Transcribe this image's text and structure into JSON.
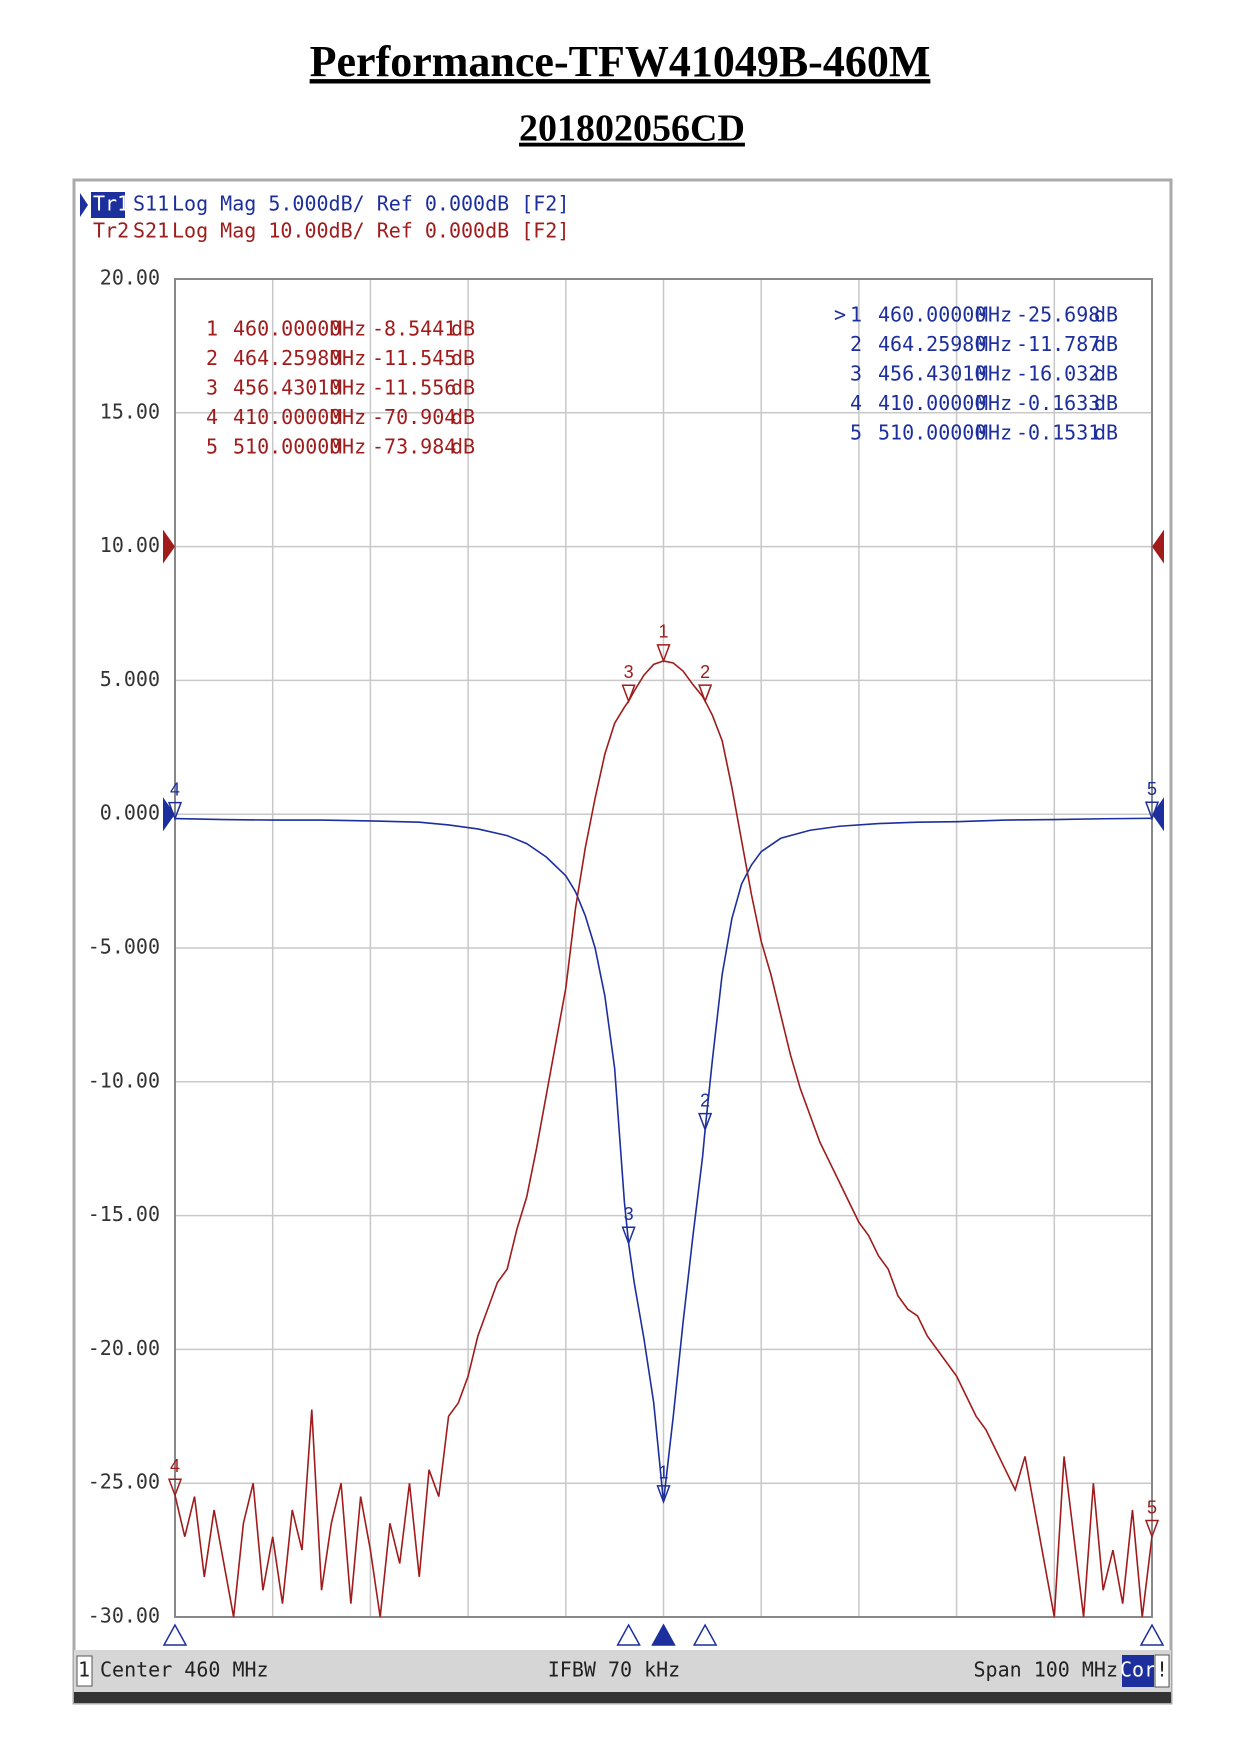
{
  "chart_data": {
    "type": "line",
    "title": "Performance-TFW41049B-460M",
    "subtitle": "201802056CD",
    "xlim": [
      410,
      510
    ],
    "xticks": [
      410,
      420,
      430,
      440,
      450,
      460,
      470,
      480,
      490,
      500,
      510
    ],
    "ylim": [
      -30,
      20
    ],
    "yticks": [
      {
        "value": 20,
        "label": "20.00"
      },
      {
        "value": 15,
        "label": "15.00"
      },
      {
        "value": 10,
        "label": "10.00"
      },
      {
        "value": 5,
        "label": "5.000"
      },
      {
        "value": 0,
        "label": "0.000"
      },
      {
        "value": -5,
        "label": "-5.000"
      },
      {
        "value": -10,
        "label": "-10.00"
      },
      {
        "value": -15,
        "label": "-15.00"
      },
      {
        "value": -20,
        "label": "-20.00"
      },
      {
        "value": -25,
        "label": "-25.00"
      },
      {
        "value": -30,
        "label": "-30.00"
      }
    ],
    "y2lim": [
      -80,
      20
    ],
    "grid": true,
    "marker_x_unit": "MHz",
    "marker_y_unit": "dB",
    "active_marker": ">",
    "series": [
      {
        "name": "S11",
        "trace": "Tr1",
        "format": "Log Mag 5.000dB/ Ref 0.000dB [F2]",
        "color": "#1c2f9c",
        "ref_level": 0,
        "x": [
          410,
          415,
          420,
          425,
          430,
          435,
          438,
          441,
          444,
          446,
          448,
          450,
          451,
          452,
          453,
          454,
          455,
          456,
          456.43,
          457,
          458,
          459,
          460,
          461,
          462,
          463,
          464,
          464.26,
          465,
          466,
          467,
          468,
          469,
          470,
          472,
          475,
          478,
          482,
          486,
          490,
          495,
          500,
          505,
          510
        ],
        "values": [
          -0.1633,
          -0.2,
          -0.22,
          -0.22,
          -0.25,
          -0.3,
          -0.4,
          -0.55,
          -0.8,
          -1.1,
          -1.6,
          -2.3,
          -2.9,
          -3.8,
          -5.0,
          -6.8,
          -9.5,
          -14.5,
          -16.032,
          -17.5,
          -19.6,
          -22.0,
          -25.698,
          -22.5,
          -19.0,
          -15.8,
          -12.8,
          -11.787,
          -9.2,
          -6.0,
          -3.9,
          -2.6,
          -1.9,
          -1.4,
          -0.9,
          -0.6,
          -0.45,
          -0.35,
          -0.3,
          -0.28,
          -0.22,
          -0.2,
          -0.17,
          -0.1531
        ],
        "markers": [
          {
            "id": "1",
            "x": {
              "value": 460,
              "label": "460.00000"
            },
            "value": -25.698
          },
          {
            "id": "2",
            "x": {
              "value": 464.2598,
              "label": "464.25980"
            },
            "value": -11.787
          },
          {
            "id": "3",
            "x": {
              "value": 456.4301,
              "label": "456.43010"
            },
            "value": -16.032
          },
          {
            "id": "4",
            "x": {
              "value": 410,
              "label": "410.00000"
            },
            "value": -0.1633
          },
          {
            "id": "5",
            "x": {
              "value": 510,
              "label": "510.00000"
            },
            "value": -0.1531
          }
        ]
      },
      {
        "name": "S21",
        "trace": "Tr2",
        "format": "Log Mag 10.00dB/ Ref 0.000dB [F2]",
        "color": "#a01c1c",
        "axis": "y2",
        "ref_level": 0,
        "x": [
          410,
          411,
          412,
          413,
          414,
          415,
          416,
          417,
          418,
          419,
          420,
          421,
          422,
          423,
          424,
          425,
          426,
          427,
          428,
          429,
          430,
          431,
          432,
          433,
          434,
          435,
          436,
          437,
          438,
          439,
          440,
          441,
          442,
          443,
          444,
          445,
          446,
          447,
          448,
          449,
          450,
          451,
          452,
          453,
          454,
          455,
          456,
          456.43,
          457,
          458,
          459,
          460,
          461,
          462,
          463,
          464,
          464.26,
          465,
          466,
          467,
          468,
          469,
          470,
          471,
          472,
          473,
          474,
          475,
          476,
          477,
          478,
          479,
          480,
          481,
          482,
          483,
          484,
          485,
          486,
          487,
          488,
          489,
          490,
          491,
          492,
          493,
          494,
          495,
          496,
          497,
          498,
          499,
          500,
          501,
          502,
          503,
          504,
          505,
          506,
          507,
          508,
          509,
          510
        ],
        "values": [
          -70.904,
          -74,
          -71,
          -77,
          -72,
          -76,
          -80,
          -73,
          -70,
          -78,
          -74,
          -79,
          -72,
          -75,
          -64.5,
          -78,
          -73,
          -70,
          -79,
          -71,
          -75,
          -80,
          -73,
          -76,
          -70,
          -77,
          -69,
          -71,
          -65,
          -64,
          -62,
          -59,
          -57,
          -55,
          -54,
          -51,
          -48.6,
          -45,
          -41,
          -37,
          -33,
          -27,
          -22.5,
          -18.8,
          -15.5,
          -13.2,
          -12.0,
          -11.556,
          -10.8,
          -9.6,
          -8.8,
          -8.5441,
          -8.7,
          -9.3,
          -10.3,
          -11.2,
          -11.545,
          -12.6,
          -14.5,
          -18,
          -22,
          -26,
          -29.5,
          -32,
          -35,
          -38,
          -40.5,
          -42.5,
          -44.5,
          -46,
          -47.5,
          -49,
          -50.5,
          -51.5,
          -53,
          -54,
          -56,
          -57,
          -57.5,
          -59,
          -60,
          -61,
          -62,
          -63.5,
          -65,
          -66,
          -67.5,
          -69,
          -70.5,
          -68,
          -72,
          -76,
          -80,
          -68,
          -74,
          -80,
          -70,
          -78,
          -75,
          -79,
          -72,
          -80,
          -73.984
        ],
        "markers": [
          {
            "id": "1",
            "x": {
              "value": 460,
              "label": "460.00000"
            },
            "value": -8.5441
          },
          {
            "id": "2",
            "x": {
              "value": 464.2598,
              "label": "464.25980"
            },
            "value": -11.545
          },
          {
            "id": "3",
            "x": {
              "value": 456.4301,
              "label": "456.43010"
            },
            "value": -11.556
          },
          {
            "id": "4",
            "x": {
              "value": 410,
              "label": "410.00000"
            },
            "value": -70.904
          },
          {
            "id": "5",
            "x": {
              "value": 510,
              "label": "510.00000"
            },
            "value": -73.984
          }
        ]
      }
    ],
    "footer": {
      "channel": "1",
      "center": "Center 460 MHz",
      "ifbw": "IFBW 70 kHz",
      "span": "Span 100 MHz",
      "cor": "Cor",
      "alert": "!"
    }
  }
}
